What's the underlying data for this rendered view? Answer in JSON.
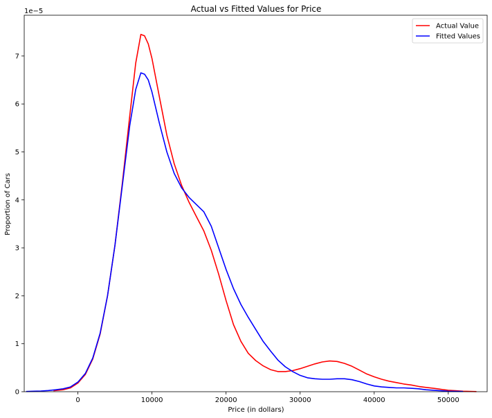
{
  "chart_data": {
    "type": "line",
    "title": "Actual vs Fitted Values for Price",
    "xlabel": "Price (in dollars)",
    "ylabel": "Proportion of Cars",
    "y_scale_note": "1e−5",
    "xlim": [
      -7250,
      55250
    ],
    "ylim": [
      0,
      7.85
    ],
    "x_ticks": [
      0,
      10000,
      20000,
      30000,
      40000,
      50000
    ],
    "y_ticks": [
      0,
      1,
      2,
      3,
      4,
      5,
      6,
      7
    ],
    "grid": false,
    "legend_position": "top-right",
    "series": [
      {
        "name": "Actual Value",
        "color": "#ff0000",
        "points": [
          [
            -3300,
            0.02
          ],
          [
            -2000,
            0.04
          ],
          [
            -1000,
            0.08
          ],
          [
            0,
            0.18
          ],
          [
            1000,
            0.36
          ],
          [
            2000,
            0.68
          ],
          [
            3000,
            1.2
          ],
          [
            4000,
            2.0
          ],
          [
            5000,
            3.05
          ],
          [
            6000,
            4.35
          ],
          [
            7000,
            5.75
          ],
          [
            7800,
            6.85
          ],
          [
            8500,
            7.45
          ],
          [
            9000,
            7.42
          ],
          [
            9500,
            7.25
          ],
          [
            10000,
            6.95
          ],
          [
            11000,
            6.15
          ],
          [
            12000,
            5.35
          ],
          [
            13000,
            4.75
          ],
          [
            14000,
            4.3
          ],
          [
            15000,
            3.95
          ],
          [
            16000,
            3.65
          ],
          [
            17000,
            3.35
          ],
          [
            18000,
            2.95
          ],
          [
            19000,
            2.45
          ],
          [
            20000,
            1.9
          ],
          [
            21000,
            1.4
          ],
          [
            22000,
            1.05
          ],
          [
            23000,
            0.8
          ],
          [
            24000,
            0.65
          ],
          [
            25000,
            0.54
          ],
          [
            26000,
            0.46
          ],
          [
            27000,
            0.42
          ],
          [
            28000,
            0.42
          ],
          [
            29000,
            0.44
          ],
          [
            30000,
            0.48
          ],
          [
            31000,
            0.53
          ],
          [
            32000,
            0.58
          ],
          [
            33000,
            0.62
          ],
          [
            34000,
            0.64
          ],
          [
            35000,
            0.63
          ],
          [
            36000,
            0.59
          ],
          [
            37000,
            0.53
          ],
          [
            38000,
            0.45
          ],
          [
            39000,
            0.37
          ],
          [
            40000,
            0.31
          ],
          [
            41000,
            0.26
          ],
          [
            42000,
            0.22
          ],
          [
            43000,
            0.19
          ],
          [
            44000,
            0.16
          ],
          [
            45000,
            0.14
          ],
          [
            46000,
            0.11
          ],
          [
            47000,
            0.09
          ],
          [
            48000,
            0.07
          ],
          [
            49000,
            0.05
          ],
          [
            50000,
            0.03
          ],
          [
            51000,
            0.02
          ],
          [
            52000,
            0.01
          ],
          [
            53800,
            0.003
          ]
        ]
      },
      {
        "name": "Fitted Values",
        "color": "#0000ff",
        "points": [
          [
            -7000,
            0.005
          ],
          [
            -6000,
            0.01
          ],
          [
            -5000,
            0.015
          ],
          [
            -4000,
            0.025
          ],
          [
            -3000,
            0.04
          ],
          [
            -2000,
            0.06
          ],
          [
            -1000,
            0.1
          ],
          [
            0,
            0.2
          ],
          [
            1000,
            0.38
          ],
          [
            2000,
            0.7
          ],
          [
            3000,
            1.22
          ],
          [
            4000,
            2.0
          ],
          [
            5000,
            3.05
          ],
          [
            6000,
            4.3
          ],
          [
            7000,
            5.55
          ],
          [
            7800,
            6.3
          ],
          [
            8500,
            6.65
          ],
          [
            9000,
            6.62
          ],
          [
            9500,
            6.5
          ],
          [
            10000,
            6.25
          ],
          [
            11000,
            5.6
          ],
          [
            12000,
            5.0
          ],
          [
            13000,
            4.55
          ],
          [
            14000,
            4.25
          ],
          [
            15000,
            4.05
          ],
          [
            16000,
            3.9
          ],
          [
            17000,
            3.75
          ],
          [
            18000,
            3.45
          ],
          [
            19000,
            3.0
          ],
          [
            20000,
            2.55
          ],
          [
            21000,
            2.15
          ],
          [
            22000,
            1.82
          ],
          [
            23000,
            1.55
          ],
          [
            24000,
            1.3
          ],
          [
            25000,
            1.05
          ],
          [
            26000,
            0.85
          ],
          [
            27000,
            0.66
          ],
          [
            28000,
            0.52
          ],
          [
            29000,
            0.42
          ],
          [
            30000,
            0.34
          ],
          [
            31000,
            0.29
          ],
          [
            32000,
            0.27
          ],
          [
            33000,
            0.26
          ],
          [
            34000,
            0.26
          ],
          [
            35000,
            0.27
          ],
          [
            36000,
            0.27
          ],
          [
            37000,
            0.25
          ],
          [
            38000,
            0.21
          ],
          [
            39000,
            0.16
          ],
          [
            40000,
            0.12
          ],
          [
            41000,
            0.1
          ],
          [
            42000,
            0.09
          ],
          [
            43000,
            0.08
          ],
          [
            44000,
            0.08
          ],
          [
            45000,
            0.07
          ],
          [
            46000,
            0.06
          ],
          [
            47000,
            0.04
          ],
          [
            48000,
            0.03
          ],
          [
            49000,
            0.02
          ],
          [
            50000,
            0.01
          ],
          [
            52000,
            0.005
          ]
        ]
      }
    ]
  }
}
